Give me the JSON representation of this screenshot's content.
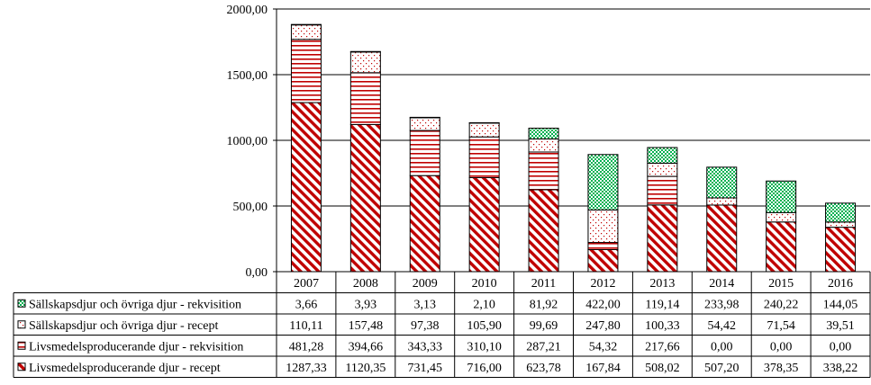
{
  "chart_data": {
    "type": "bar",
    "stacked": true,
    "categories": [
      "2007",
      "2008",
      "2009",
      "2010",
      "2011",
      "2012",
      "2013",
      "2014",
      "2015",
      "2016"
    ],
    "ylim": [
      0,
      2000
    ],
    "yticks": [
      0,
      500,
      1000,
      1500,
      2000
    ],
    "ytick_labels": [
      "0,00",
      "500,00",
      "1000,00",
      "1500,00",
      "2000,00"
    ],
    "grid": true,
    "legend": "data-table-below",
    "series": [
      {
        "name": "Livsmedelsproducerande djur - recept",
        "values": [
          1287.33,
          1120.35,
          731.45,
          716.0,
          623.78,
          167.84,
          508.02,
          507.2,
          378.35,
          338.22
        ],
        "labels": [
          "1287,33",
          "1120,35",
          "731,45",
          "716,00",
          "623,78",
          "167,84",
          "508,02",
          "507,20",
          "378,35",
          "338,22"
        ],
        "pattern": "diagonal",
        "color": "#c00000"
      },
      {
        "name": "Livsmedelsproducerande djur - rekvisition",
        "values": [
          481.28,
          394.66,
          343.33,
          310.1,
          287.21,
          54.32,
          217.66,
          0.0,
          0.0,
          0.0
        ],
        "labels": [
          "481,28",
          "394,66",
          "343,33",
          "310,10",
          "287,21",
          "54,32",
          "217,66",
          "0,00",
          "0,00",
          "0,00"
        ],
        "pattern": "horizontal",
        "color": "#c00000"
      },
      {
        "name": "Sällskapsdjur och övriga djur - recept",
        "values": [
          110.11,
          157.48,
          97.38,
          105.9,
          99.69,
          247.8,
          100.33,
          54.42,
          71.54,
          39.51
        ],
        "labels": [
          "110,11",
          "157,48",
          "97,38",
          "105,90",
          "99,69",
          "247,80",
          "100,33",
          "54,42",
          "71,54",
          "39,51"
        ],
        "pattern": "dots",
        "color": "#c00000"
      },
      {
        "name": "Sällskapsdjur och övriga djur - rekvisition",
        "values": [
          3.66,
          3.93,
          3.13,
          2.1,
          81.92,
          422.0,
          119.14,
          233.98,
          240.22,
          144.05
        ],
        "labels": [
          "3,66",
          "3,93",
          "3,13",
          "2,10",
          "81,92",
          "422,00",
          "119,14",
          "233,98",
          "240,22",
          "144,05"
        ],
        "pattern": "checker",
        "color": "#00b050"
      }
    ],
    "table_row_order": [
      3,
      2,
      1,
      0
    ]
  }
}
